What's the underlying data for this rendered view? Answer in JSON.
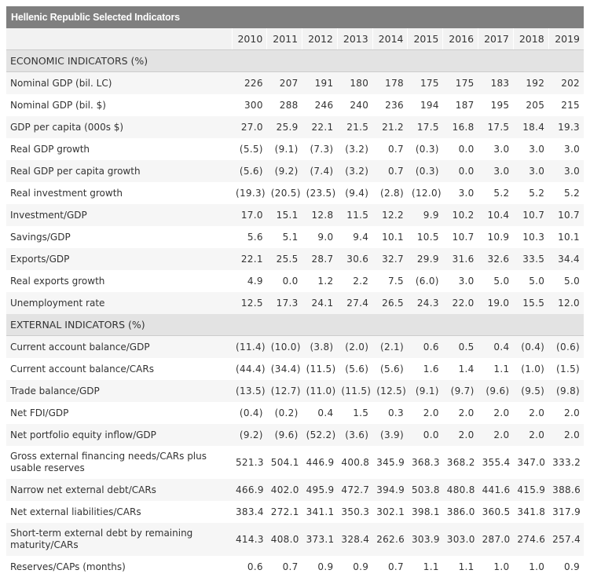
{
  "title": "Hellenic Republic Selected Indicators",
  "years": [
    "2010",
    "2011",
    "2012",
    "2013",
    "2014",
    "2015",
    "2016",
    "2017",
    "2018",
    "2019"
  ],
  "sections": [
    {
      "title": "ECONOMIC INDICATORS (%)",
      "rows": [
        {
          "label": "Nominal GDP (bil. LC)",
          "values": [
            "226",
            "207",
            "191",
            "180",
            "178",
            "175",
            "175",
            "183",
            "192",
            "202"
          ]
        },
        {
          "label": "Nominal GDP (bil. $)",
          "values": [
            "300",
            "288",
            "246",
            "240",
            "236",
            "194",
            "187",
            "195",
            "205",
            "215"
          ]
        },
        {
          "label": "GDP per capita (000s $)",
          "values": [
            "27.0",
            "25.9",
            "22.1",
            "21.5",
            "21.2",
            "17.5",
            "16.8",
            "17.5",
            "18.4",
            "19.3"
          ]
        },
        {
          "label": "Real GDP growth",
          "values": [
            "(5.5)",
            "(9.1)",
            "(7.3)",
            "(3.2)",
            "0.7",
            "(0.3)",
            "0.0",
            "3.0",
            "3.0",
            "3.0"
          ]
        },
        {
          "label": "Real GDP per capita growth",
          "values": [
            "(5.6)",
            "(9.2)",
            "(7.4)",
            "(3.2)",
            "0.7",
            "(0.3)",
            "0.0",
            "3.0",
            "3.0",
            "3.0"
          ]
        },
        {
          "label": "Real investment growth",
          "values": [
            "(19.3)",
            "(20.5)",
            "(23.5)",
            "(9.4)",
            "(2.8)",
            "(12.0)",
            "3.0",
            "5.2",
            "5.2",
            "5.2"
          ]
        },
        {
          "label": "Investment/GDP",
          "values": [
            "17.0",
            "15.1",
            "12.8",
            "11.5",
            "12.2",
            "9.9",
            "10.2",
            "10.4",
            "10.7",
            "10.7"
          ]
        },
        {
          "label": "Savings/GDP",
          "values": [
            "5.6",
            "5.1",
            "9.0",
            "9.4",
            "10.1",
            "10.5",
            "10.7",
            "10.9",
            "10.3",
            "10.1"
          ]
        },
        {
          "label": "Exports/GDP",
          "values": [
            "22.1",
            "25.5",
            "28.7",
            "30.6",
            "32.7",
            "29.9",
            "31.6",
            "32.6",
            "33.5",
            "34.4"
          ]
        },
        {
          "label": "Real exports growth",
          "values": [
            "4.9",
            "0.0",
            "1.2",
            "2.2",
            "7.5",
            "(6.0)",
            "3.0",
            "5.0",
            "5.0",
            "5.0"
          ]
        },
        {
          "label": "Unemployment rate",
          "values": [
            "12.5",
            "17.3",
            "24.1",
            "27.4",
            "26.5",
            "24.3",
            "22.0",
            "19.0",
            "15.5",
            "12.0"
          ]
        }
      ]
    },
    {
      "title": "EXTERNAL INDICATORS (%)",
      "rows": [
        {
          "label": "Current account balance/GDP",
          "values": [
            "(11.4)",
            "(10.0)",
            "(3.8)",
            "(2.0)",
            "(2.1)",
            "0.6",
            "0.5",
            "0.4",
            "(0.4)",
            "(0.6)"
          ]
        },
        {
          "label": "Current account balance/CARs",
          "values": [
            "(44.4)",
            "(34.4)",
            "(11.5)",
            "(5.6)",
            "(5.6)",
            "1.6",
            "1.4",
            "1.1",
            "(1.0)",
            "(1.5)"
          ]
        },
        {
          "label": "Trade balance/GDP",
          "values": [
            "(13.5)",
            "(12.7)",
            "(11.0)",
            "(11.5)",
            "(12.5)",
            "(9.1)",
            "(9.7)",
            "(9.6)",
            "(9.5)",
            "(9.8)"
          ]
        },
        {
          "label": "Net FDI/GDP",
          "values": [
            "(0.4)",
            "(0.2)",
            "0.4",
            "1.5",
            "0.3",
            "2.0",
            "2.0",
            "2.0",
            "2.0",
            "2.0"
          ]
        },
        {
          "label": "Net portfolio equity inflow/GDP",
          "values": [
            "(9.2)",
            "(9.6)",
            "(52.2)",
            "(3.6)",
            "(3.9)",
            "0.0",
            "2.0",
            "2.0",
            "2.0",
            "2.0"
          ]
        },
        {
          "label": "Gross external financing needs/CARs plus usable reserves",
          "tall": true,
          "values": [
            "521.3",
            "504.1",
            "446.9",
            "400.8",
            "345.9",
            "368.3",
            "368.2",
            "355.4",
            "347.0",
            "333.2"
          ]
        },
        {
          "label": "Narrow net external debt/CARs",
          "values": [
            "466.9",
            "402.0",
            "495.9",
            "472.7",
            "394.9",
            "503.8",
            "480.8",
            "441.6",
            "415.9",
            "388.6"
          ]
        },
        {
          "label": "Net external liabilities/CARs",
          "values": [
            "383.4",
            "272.1",
            "341.1",
            "350.3",
            "302.1",
            "398.1",
            "386.0",
            "360.5",
            "341.8",
            "317.9"
          ]
        },
        {
          "label": "Short-term external debt by remaining maturity/CARs",
          "tall": true,
          "values": [
            "414.3",
            "408.0",
            "373.1",
            "328.4",
            "262.6",
            "303.9",
            "303.0",
            "287.0",
            "274.6",
            "257.4"
          ]
        },
        {
          "label": "Reserves/CAPs (months)",
          "values": [
            "0.6",
            "0.7",
            "0.9",
            "0.9",
            "0.7",
            "1.1",
            "1.1",
            "1.0",
            "1.0",
            "0.9"
          ]
        }
      ]
    }
  ]
}
